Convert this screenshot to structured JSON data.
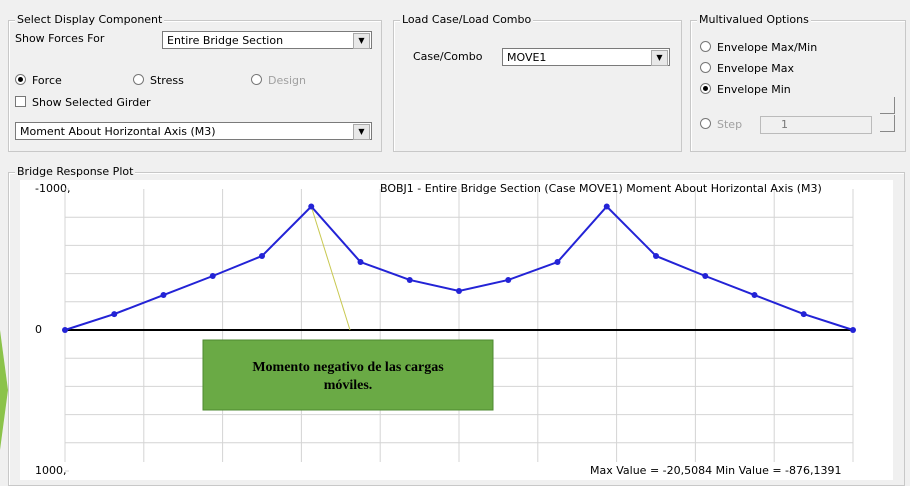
{
  "display_component": {
    "title": "Select Display Component",
    "show_forces_label": "Show Forces For",
    "show_forces_value": "Entire Bridge Section",
    "radios": [
      {
        "label": "Force",
        "checked": true,
        "enabled": true
      },
      {
        "label": "Stress",
        "checked": false,
        "enabled": true
      },
      {
        "label": "Design",
        "checked": false,
        "enabled": false
      }
    ],
    "checkbox": "Show Selected Girder",
    "component_value": "Moment About Horizontal Axis  (M3)"
  },
  "load_case": {
    "title": "Load Case/Load Combo",
    "label": "Case/Combo",
    "value": "MOVE1"
  },
  "multivalued": {
    "title": "Multivalued Options",
    "radios": [
      {
        "label": "Envelope Max/Min",
        "checked": false,
        "enabled": true
      },
      {
        "label": "Envelope Max",
        "checked": false,
        "enabled": true
      },
      {
        "label": "Envelope Min",
        "checked": true,
        "enabled": true
      },
      {
        "label": "Step",
        "checked": false,
        "enabled": false
      }
    ],
    "step_value": "1"
  },
  "chart_data": {
    "type": "line",
    "panel_title": "Bridge Response Plot",
    "title": "BOBJ1 - Entire Bridge Section  (Case MOVE1)  Moment About Horizontal Axis  (M3)",
    "footer": "Max Value = -20,5084   Min Value = -876,1391",
    "annotation": [
      "Momento negativo de las cargas",
      "móviles."
    ],
    "categories": [
      null,
      null,
      null,
      null,
      null,
      null,
      null,
      null,
      null,
      null,
      null,
      null,
      null,
      null,
      null,
      null,
      null
    ],
    "values": [
      0,
      -113,
      -248,
      -383,
      -525,
      -876,
      -482,
      -355,
      -277,
      -355,
      -482,
      -876,
      -525,
      -383,
      -248,
      -113,
      0
    ],
    "color": "#2323d6",
    "ylim": [
      -1000,
      1000
    ],
    "y_inverted": true,
    "yticks": [
      {
        "value": -1000,
        "label": "-1000,"
      },
      0,
      {
        "value": 1000,
        "label": "1000,"
      }
    ],
    "grid": true
  }
}
